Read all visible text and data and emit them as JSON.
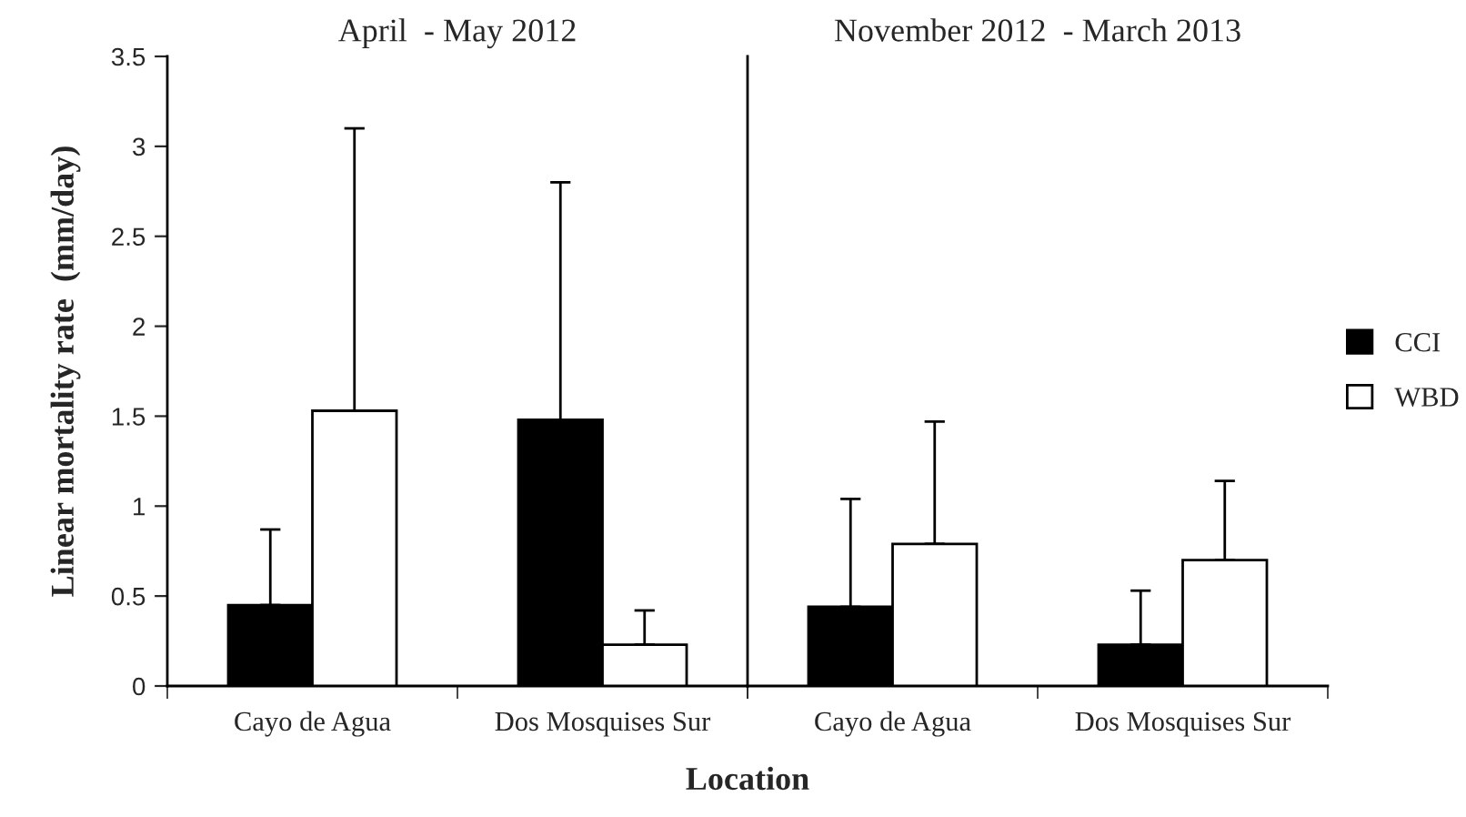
{
  "chart_data": [
    {
      "type": "bar",
      "title": "April  - May 2012",
      "ylabel": "Linear mortality rate  (mm/day)",
      "xlabel": "Location",
      "categories": [
        "Cayo de Agua",
        "Dos Mosquises Sur"
      ],
      "series": [
        {
          "color": "#000000",
          "values": [
            0.45,
            1.48
          ],
          "errors": [
            [
              0.45,
              0.87
            ],
            [
              1.48,
              2.8
            ]
          ]
        },
        {
          "color": "#ffffff",
          "values": [
            1.53,
            0.23
          ],
          "errors": [
            [
              1.53,
              3.1
            ],
            [
              0.23,
              0.42
            ]
          ]
        }
      ],
      "ylim": [
        0,
        3.5
      ],
      "yticks": [
        0,
        0.5,
        1,
        1.5,
        2,
        2.5,
        3,
        3.5
      ],
      "grid": false
    },
    {
      "type": "bar",
      "title": "November 2012  - March 2013",
      "categories": [
        "Cayo de Agua",
        "Dos Mosquises Sur"
      ],
      "series": [
        {
          "name": "CCI",
          "color": "#000000",
          "values": [
            0.44,
            0.23
          ],
          "errors": [
            [
              0.44,
              1.04
            ],
            [
              0.23,
              0.53
            ]
          ]
        },
        {
          "name": "WBD",
          "color": "#ffffff",
          "values": [
            0.79,
            0.7
          ],
          "errors": [
            [
              0.79,
              1.47
            ],
            [
              0.7,
              1.14
            ]
          ]
        }
      ],
      "ylim": [
        0,
        3.5
      ],
      "tick_labels": "x",
      "grid": false,
      "legend": "right"
    }
  ]
}
